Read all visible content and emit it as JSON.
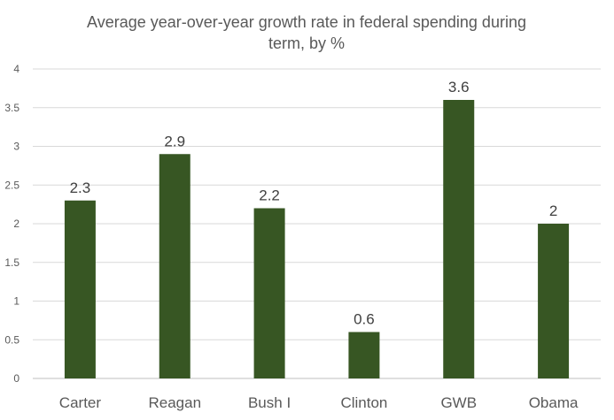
{
  "chart_data": {
    "type": "bar",
    "title_lines": [
      "Average year-over-year growth rate in federal spending during",
      "term, by %"
    ],
    "categories": [
      "Carter",
      "Reagan",
      "Bush I",
      "Clinton",
      "GWB",
      "Obama"
    ],
    "values": [
      2.3,
      2.9,
      2.2,
      0.6,
      3.6,
      2
    ],
    "value_labels": [
      "2.3",
      "2.9",
      "2.2",
      "0.6",
      "3.6",
      "2"
    ],
    "ylim": [
      0,
      4
    ],
    "yticks": [
      "0",
      "0.5",
      "1",
      "1.5",
      "2",
      "2.5",
      "3",
      "3.5",
      "4"
    ],
    "grid": true,
    "legend": "none",
    "bar_color": "#375623",
    "grid_color": "#d9d9d9",
    "text_color": "#595959",
    "label_color": "#404040"
  }
}
